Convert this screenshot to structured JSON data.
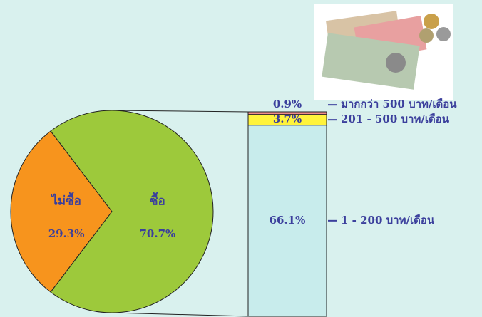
{
  "chart_data": [
    {
      "type": "pie",
      "categories": [
        "ไม่ซื้อ",
        "ซื้อ"
      ],
      "values": [
        29.3,
        70.7
      ],
      "value_labels": [
        "29.3%",
        "70.7%"
      ],
      "colors": [
        "#f7941d",
        "#9dc93b"
      ]
    },
    {
      "type": "stacked-bar",
      "categories": [
        "1 - 200 บาท/เดือน",
        "201 - 500 บาท/เดือน",
        "มากกว่า 500 บาท/เดือน"
      ],
      "values": [
        66.1,
        3.7,
        0.9
      ],
      "value_labels": [
        "66.1%",
        "3.7%",
        "0.9%"
      ],
      "colors": [
        "#c8ecec",
        "#fff33b",
        "#f08c8c"
      ]
    }
  ]
}
